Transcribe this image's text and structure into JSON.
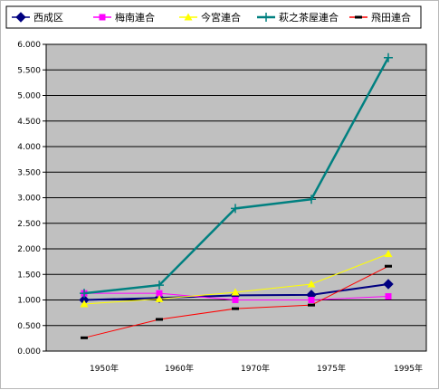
{
  "chart_data": {
    "type": "line",
    "title": "",
    "xlabel": "",
    "ylabel": "",
    "categories": [
      "1950年",
      "1960年",
      "1970年",
      "1975年",
      "1995年"
    ],
    "ylim": [
      0,
      6.0
    ],
    "y_ticks": [
      "0.000",
      "0.500",
      "1.000",
      "1.500",
      "2.000",
      "2.500",
      "3.000",
      "3.500",
      "4.000",
      "4.500",
      "5.000",
      "5.500",
      "6.000"
    ],
    "grid": true,
    "legend_position": "top",
    "plot_background": "#c0c0c0",
    "series": [
      {
        "name": "西成区",
        "color": "#000080",
        "marker": "diamond",
        "values": [
          1.0,
          1.04,
          1.09,
          1.1,
          1.31
        ]
      },
      {
        "name": "梅南連合",
        "color": "#ff00ff",
        "marker": "square",
        "values": [
          1.13,
          1.13,
          1.0,
          1.0,
          1.07
        ]
      },
      {
        "name": "今宮連合",
        "color": "#ffff00",
        "marker": "triangle",
        "values": [
          0.92,
          1.02,
          1.15,
          1.31,
          1.9
        ]
      },
      {
        "name": "萩之茶屋連合",
        "color": "#008080",
        "marker": "plus",
        "values": [
          1.13,
          1.29,
          2.79,
          2.97,
          5.74
        ]
      },
      {
        "name": "飛田連合",
        "color": "#ff0000",
        "marker": "dash",
        "values": [
          0.26,
          0.62,
          0.83,
          0.9,
          1.66
        ]
      }
    ]
  }
}
